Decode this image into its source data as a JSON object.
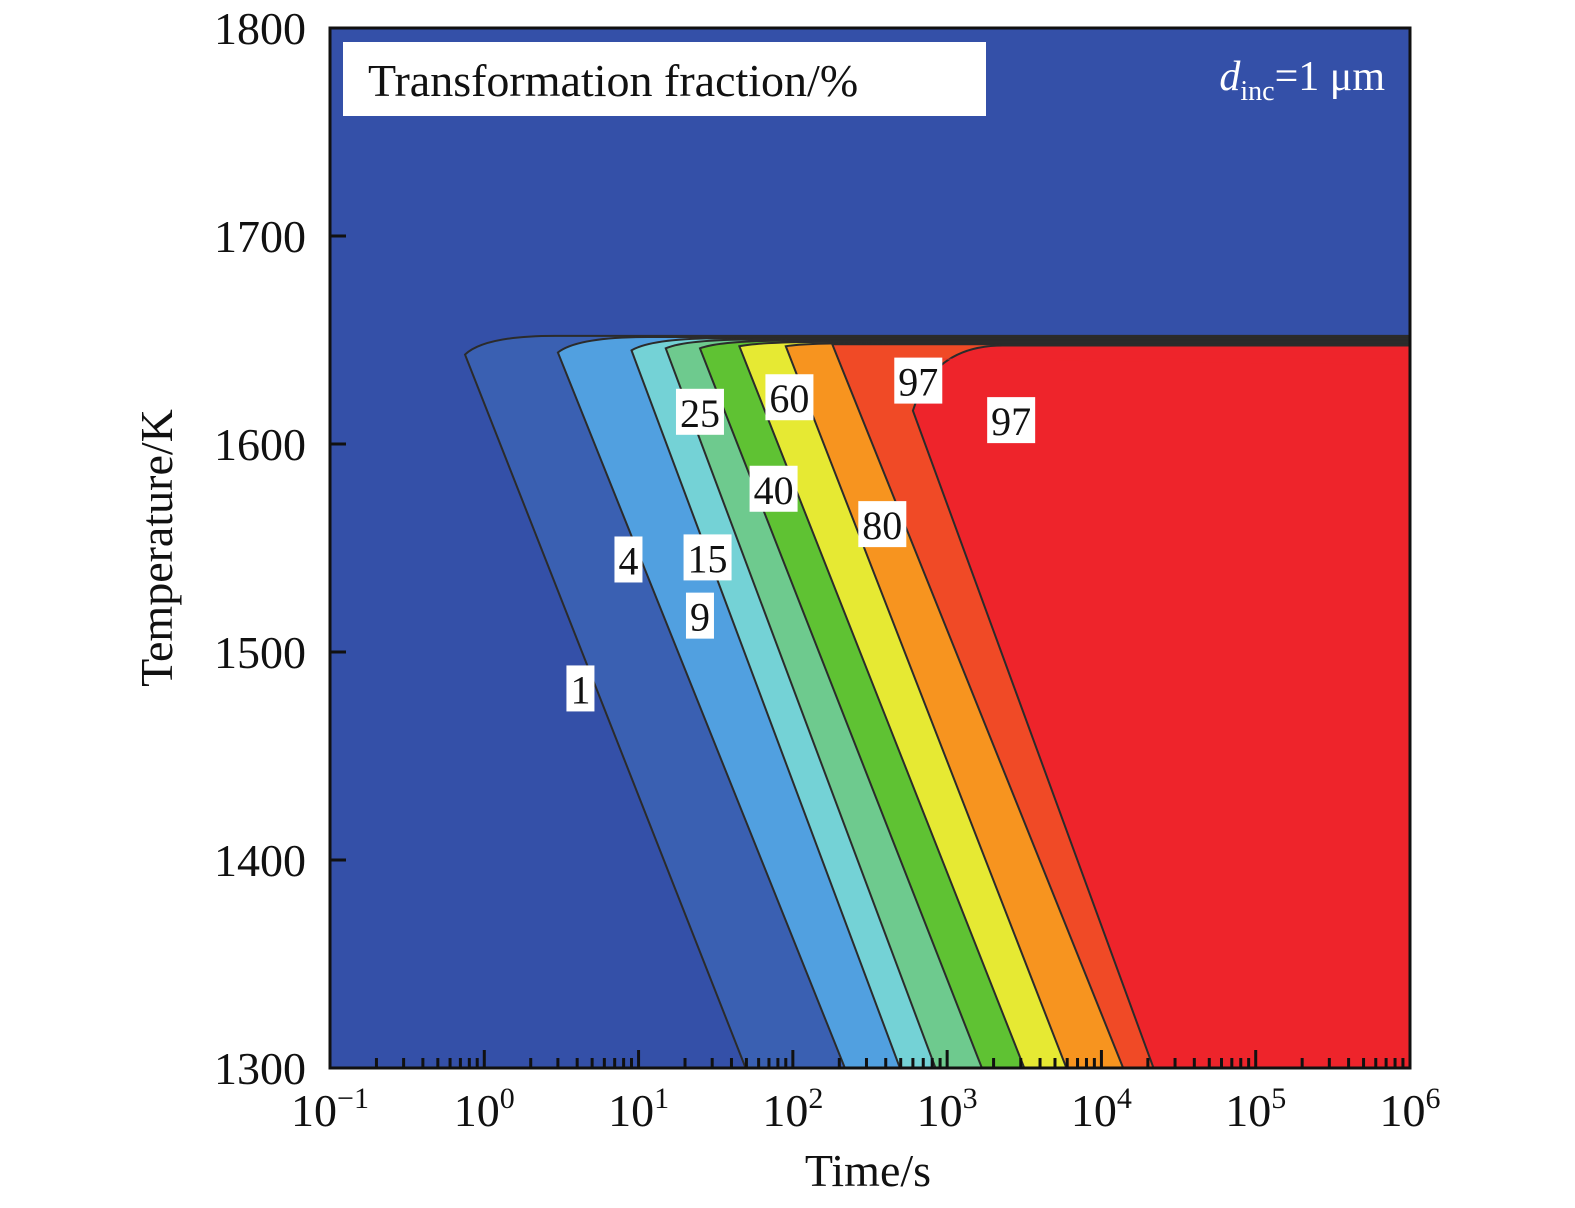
{
  "chart_data": {
    "type": "contour",
    "title": "Transformation fraction/%",
    "annotation": {
      "symbol": "d",
      "subscript": "inc",
      "value": "=1 μm"
    },
    "xlabel": "Time/s",
    "ylabel": "Temperature/K",
    "x_scale": "log",
    "xlim": [
      0.1,
      1000000
    ],
    "ylim": [
      1300,
      1800
    ],
    "x_ticks": [
      {
        "base": "10",
        "exp": "−1",
        "value": 0.1
      },
      {
        "base": "10",
        "exp": "0",
        "value": 1
      },
      {
        "base": "10",
        "exp": "1",
        "value": 10
      },
      {
        "base": "10",
        "exp": "2",
        "value": 100
      },
      {
        "base": "10",
        "exp": "3",
        "value": 1000
      },
      {
        "base": "10",
        "exp": "4",
        "value": 10000
      },
      {
        "base": "10",
        "exp": "5",
        "value": 100000
      },
      {
        "base": "10",
        "exp": "6",
        "value": 1000000
      }
    ],
    "y_ticks": [
      "1300",
      "1400",
      "1500",
      "1600",
      "1700",
      "1800"
    ],
    "background_color": "#3450A8",
    "plateau": {
      "upper_T": 1652,
      "transition_T": 1638,
      "x_right": 1000000
    },
    "levels": [
      {
        "level": 1,
        "color": "#3A60B2",
        "tip": [
          0.75,
          1643
        ],
        "base_x": 50,
        "label": "1",
        "label_at": [
          4.2,
          1482
        ]
      },
      {
        "level": 4,
        "color": "#51A0E0",
        "tip": [
          3.0,
          1644
        ],
        "base_x": 220,
        "label": "4",
        "label_at": [
          8.6,
          1544
        ]
      },
      {
        "level": 9,
        "color": "#74D2D6",
        "tip": [
          9.0,
          1645
        ],
        "base_x": 500,
        "label": "9",
        "label_at": [
          25,
          1517
        ]
      },
      {
        "level": 15,
        "color": "#6ECA8E",
        "tip": [
          15,
          1646
        ],
        "base_x": 850,
        "label": "15",
        "label_at": [
          28,
          1545
        ]
      },
      {
        "level": 25,
        "color": "#5FC233",
        "tip": [
          25,
          1646
        ],
        "base_x": 1700,
        "label": "25",
        "label_at": [
          25,
          1615
        ]
      },
      {
        "level": 40,
        "color": "#E6E933",
        "tip": [
          45,
          1647
        ],
        "base_x": 3200,
        "label": "40",
        "label_at": [
          75,
          1578
        ]
      },
      {
        "level": 60,
        "color": "#F7941F",
        "tip": [
          90,
          1647
        ],
        "base_x": 6000,
        "label": "60",
        "label_at": [
          95,
          1622
        ]
      },
      {
        "level": 80,
        "color": "#F04A26",
        "tip": [
          180,
          1648
        ],
        "base_x": 14000,
        "label": "80",
        "label_at": [
          380,
          1561
        ]
      },
      {
        "level": 97,
        "color": "#EE242B",
        "tip": [
          600,
          1616
        ],
        "base_x": 22000,
        "label": "97",
        "label_at": [
          2600,
          1611
        ]
      }
    ],
    "extra_labels": [
      {
        "label": "97",
        "label_at": [
          650,
          1630
        ]
      }
    ]
  }
}
